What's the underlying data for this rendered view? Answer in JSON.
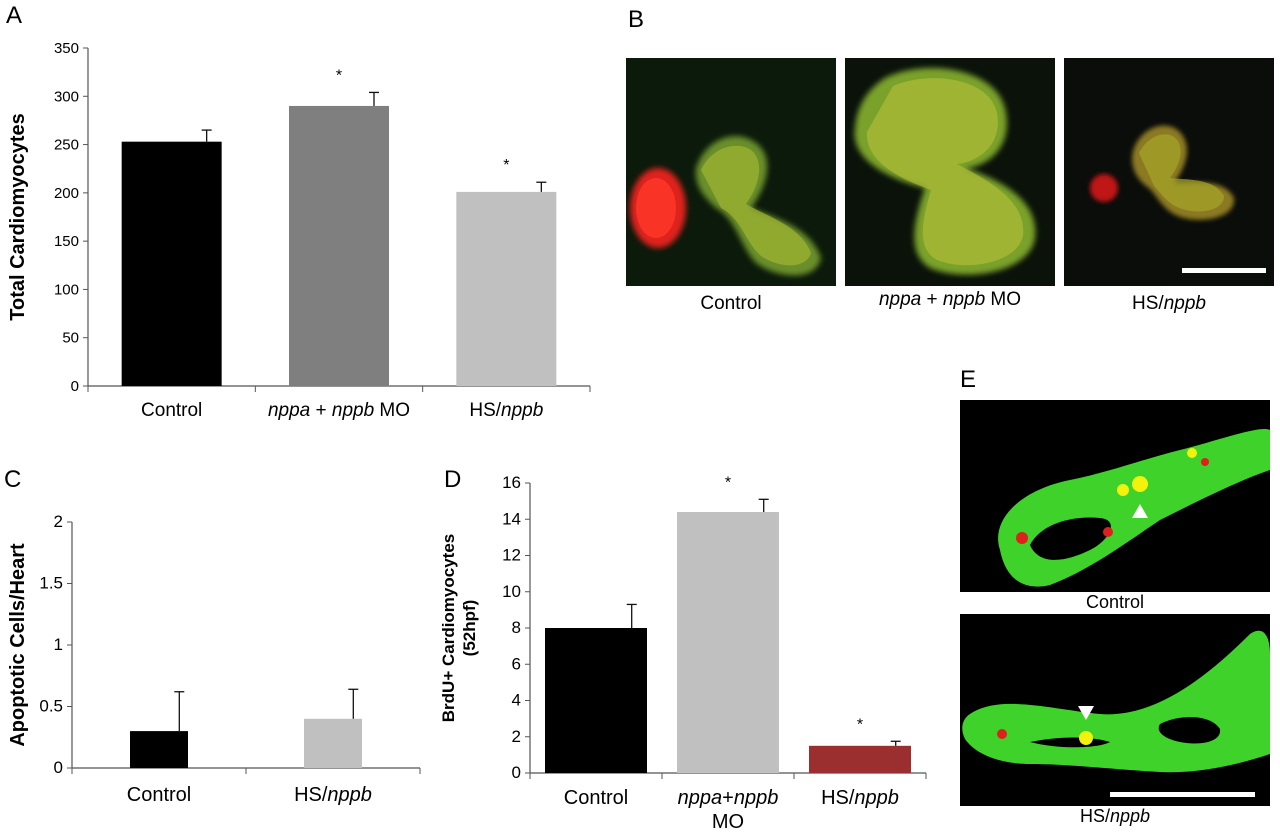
{
  "panels": {
    "A": "A",
    "B": "B",
    "C": "C",
    "D": "D",
    "E": "E"
  },
  "colors": {
    "black_bar": "#000000",
    "dark_grey_bar": "#7f7f7f",
    "light_grey_bar": "#c0c0c0",
    "red_bar": "#9b2f2f",
    "fluor_green": "#3fd22a",
    "fluor_red": "#e0201c",
    "fluor_yellow": "#f2f20c"
  },
  "chart_data": [
    {
      "panel": "A",
      "type": "bar",
      "ylabel": "Total Cardiomyocytes",
      "ylim": [
        0,
        350
      ],
      "yticks": [
        "0",
        "50",
        "100",
        "150",
        "200",
        "250",
        "300",
        "350"
      ],
      "categories": [
        {
          "main": "Control"
        },
        {
          "italic1": "nppa",
          "mid": " + ",
          "italic2": "nppb",
          "tail": " MO"
        },
        {
          "main": "HS/",
          "italic": "nppb"
        }
      ],
      "values": [
        253,
        290,
        201
      ],
      "errors": [
        12,
        14,
        10
      ],
      "significance": [
        "",
        "*",
        "*"
      ],
      "bar_colors": [
        "#000000",
        "#7f7f7f",
        "#c0c0c0"
      ]
    },
    {
      "panel": "C",
      "type": "bar",
      "ylabel": "Apoptotic Cells/Heart",
      "ylim": [
        0,
        2
      ],
      "yticks": [
        "0",
        "0.5",
        "1",
        "1.5",
        "2"
      ],
      "categories": [
        {
          "main": "Control"
        },
        {
          "main": "HS/",
          "italic": "nppb"
        }
      ],
      "values": [
        0.3,
        0.4
      ],
      "errors": [
        0.32,
        0.24
      ],
      "significance": [
        "",
        ""
      ],
      "bar_colors": [
        "#000000",
        "#c0c0c0"
      ]
    },
    {
      "panel": "D",
      "type": "bar",
      "ylabel_line1": "BrdU+ Cardiomyocytes",
      "ylabel_line2": "(52hpf)",
      "ylim": [
        0,
        16
      ],
      "yticks": [
        "0",
        "2",
        "4",
        "6",
        "8",
        "10",
        "12",
        "14",
        "16"
      ],
      "categories": [
        {
          "main": "Control"
        },
        {
          "italic1": "nppa",
          "mid": "+",
          "italic2": "nppb",
          "line2": "MO"
        },
        {
          "main": "HS/",
          "italic": "nppb"
        }
      ],
      "values": [
        8.0,
        14.4,
        1.5
      ],
      "errors": [
        1.3,
        0.7,
        0.25
      ],
      "significance": [
        "",
        "*",
        "*"
      ],
      "bar_colors": [
        "#000000",
        "#c0c0c0",
        "#9b2f2f"
      ]
    }
  ],
  "panel_b": {
    "images": [
      {
        "caption": "Control"
      },
      {
        "caption_italic1": "nppa",
        "caption_mid": " + ",
        "caption_italic2": "nppb",
        "caption_tail": " MO"
      },
      {
        "caption_main": "HS/",
        "caption_italic": "nppb"
      }
    ]
  },
  "panel_e": {
    "top_caption": "Control",
    "bottom_caption_main": "HS/",
    "bottom_caption_italic": "nppb"
  }
}
